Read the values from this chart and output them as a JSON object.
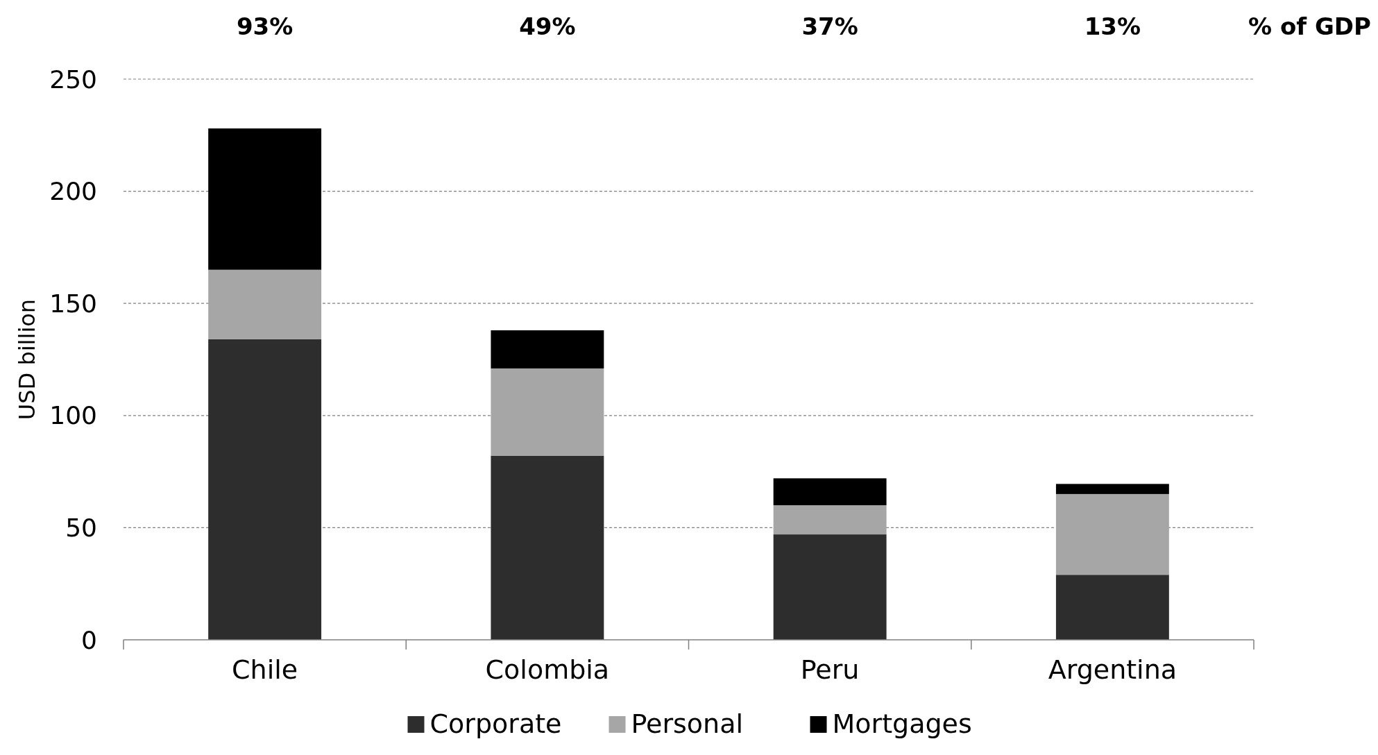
{
  "chart_data": {
    "type": "bar",
    "stacked": true,
    "ylabel": "USD billion",
    "categories": [
      "Chile",
      "Colombia",
      "Peru",
      "Argentina"
    ],
    "series": [
      {
        "name": "Corporate",
        "color": "#2d2d2d",
        "values": [
          134,
          82,
          47,
          29
        ]
      },
      {
        "name": "Personal",
        "color": "#a6a6a6",
        "values": [
          31,
          39,
          13,
          36
        ]
      },
      {
        "name": "Mortgages",
        "color": "#000000",
        "values": [
          63,
          17,
          12,
          4.5
        ]
      }
    ],
    "ylim": [
      0,
      250
    ],
    "yticks": [
      0,
      50,
      100,
      150,
      200,
      250
    ],
    "grid": "y",
    "legend": "bottom",
    "annotations": [
      "93%",
      "49%",
      "37%",
      "13%",
      "% of GDP"
    ]
  }
}
